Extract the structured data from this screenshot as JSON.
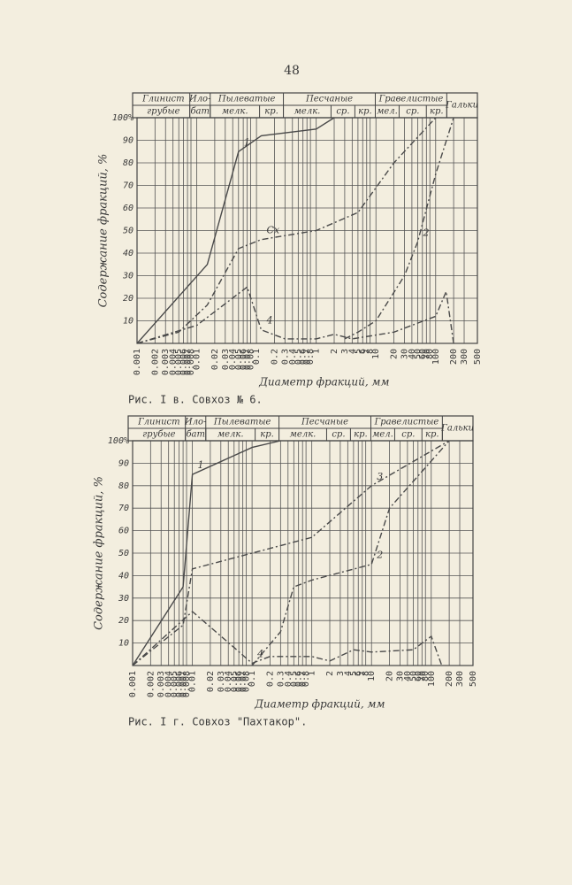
{
  "page_number": "48",
  "chart_data": [
    {
      "type": "line",
      "caption": "Рис. I в. Совхоз № 6.",
      "ylabel": "Содержание фракций, %",
      "xlabel": "Диаметр фракций, мм",
      "header": {
        "row1": [
          "Глинист",
          "Ило-",
          "Пылеватые",
          "Песчаные",
          "Гравелистые",
          "Гальки"
        ],
        "row2": [
          "грубые",
          "бат",
          "мелк.",
          "кр.",
          "мелк.",
          "ср.",
          "кр.",
          "мел.",
          "ср.",
          "кр."
        ]
      },
      "log_x": true,
      "grid": true,
      "xlim": [
        0.001,
        500
      ],
      "ylim": [
        0,
        100
      ],
      "xticks": [
        0.001,
        0.002,
        0.003,
        0.004,
        0.005,
        0.006,
        0.007,
        0.008,
        0.01,
        0.02,
        0.03,
        0.04,
        0.05,
        0.06,
        0.07,
        0.08,
        0.1,
        0.2,
        0.3,
        0.4,
        0.5,
        0.6,
        0.7,
        0.8,
        1,
        2,
        3,
        4,
        5,
        6,
        7,
        8,
        10,
        20,
        30,
        40,
        50,
        60,
        70,
        80,
        100,
        200,
        300,
        500
      ],
      "yticks": [
        10,
        20,
        30,
        40,
        50,
        60,
        70,
        80,
        90,
        {
          "value": 100,
          "label": "100%"
        }
      ],
      "series": [
        {
          "name": "1",
          "color": "#4a4a4a",
          "dash": "none",
          "x": [
            0.001,
            0.015,
            0.05,
            0.12,
            1,
            2
          ],
          "values": [
            0,
            35,
            85,
            92,
            95,
            100
          ]
        },
        {
          "name": "Сх",
          "color": "#4a4a4a",
          "dash": "7 3 2 3",
          "x": [
            0.001,
            0.005,
            0.015,
            0.05,
            0.12,
            1,
            5,
            20,
            100
          ],
          "values": [
            0,
            5,
            17,
            42,
            46,
            50,
            58,
            80,
            100
          ]
        },
        {
          "name": "2",
          "color": "#4a4a4a",
          "dash": "7 3 2 3",
          "x": [
            3,
            5,
            10,
            30,
            50,
            100,
            200
          ],
          "values": [
            2,
            5,
            10,
            30,
            45,
            75,
            100
          ]
        },
        {
          "name": "4",
          "color": "#4a4a4a",
          "dash": "7 3 2 3",
          "x": [
            0.001,
            0.01,
            0.07,
            0.12,
            0.3,
            1,
            2,
            4,
            20,
            100,
            150,
            200
          ],
          "values": [
            0,
            8,
            25,
            6,
            2,
            2,
            4,
            2,
            5,
            12,
            23,
            0
          ]
        }
      ]
    },
    {
      "type": "line",
      "caption": "Рис. I г. Совхоз \"Пахтакор\".",
      "ylabel": "Содержание фракций, %",
      "xlabel": "Диаметр фракций, мм",
      "header": {
        "row1": [
          "Глинист",
          "Ило-",
          "Пылеватые",
          "Песчаные",
          "Гравелистые",
          "Гальки"
        ],
        "row2": [
          "грубые",
          "бат",
          "мелк.",
          "кр.",
          "мелк.",
          "ср.",
          "кр.",
          "мел.",
          "ср.",
          "кр."
        ]
      },
      "log_x": true,
      "grid": true,
      "xlim": [
        0.001,
        500
      ],
      "ylim": [
        0,
        100
      ],
      "xticks": [
        0.001,
        0.002,
        0.003,
        0.004,
        0.005,
        0.006,
        0.007,
        0.008,
        0.01,
        0.02,
        0.03,
        0.04,
        0.05,
        0.06,
        0.07,
        0.08,
        0.1,
        0.2,
        0.3,
        0.4,
        0.5,
        0.6,
        0.7,
        0.8,
        1,
        2,
        3,
        4,
        5,
        6,
        7,
        8,
        10,
        20,
        30,
        40,
        50,
        60,
        70,
        80,
        100,
        200,
        300,
        500
      ],
      "yticks": [
        10,
        20,
        30,
        40,
        50,
        60,
        70,
        80,
        90,
        {
          "value": 100,
          "label": "100%"
        }
      ],
      "series": [
        {
          "name": "1",
          "color": "#4a4a4a",
          "dash": "none",
          "x": [
            0.001,
            0.007,
            0.01,
            0.1,
            0.3
          ],
          "values": [
            0,
            35,
            85,
            97,
            100
          ]
        },
        {
          "name": "3",
          "color": "#4a4a4a",
          "dash": "7 3 2 3",
          "x": [
            0.001,
            0.007,
            0.01,
            1,
            10,
            200
          ],
          "values": [
            0,
            18,
            43,
            57,
            80,
            100
          ]
        },
        {
          "name": "2",
          "color": "#4a4a4a",
          "dash": "7 3 2 3",
          "x": [
            0.1,
            0.3,
            0.5,
            1,
            10,
            20,
            200
          ],
          "values": [
            0,
            15,
            35,
            38,
            45,
            70,
            100
          ]
        },
        {
          "name": "4",
          "color": "#4a4a4a",
          "dash": "7 3 2 3",
          "x": [
            0.001,
            0.01,
            0.05,
            0.1,
            0.2,
            1,
            2,
            5,
            10,
            50,
            100,
            150
          ],
          "values": [
            0,
            24,
            8,
            1,
            4,
            4,
            2,
            7,
            6,
            7,
            13,
            0
          ]
        }
      ]
    }
  ]
}
